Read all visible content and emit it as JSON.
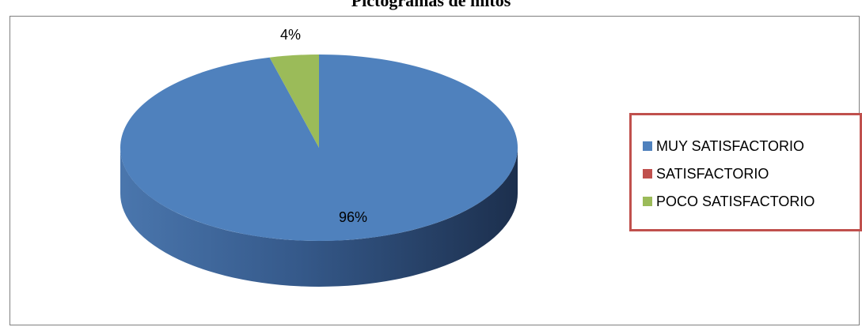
{
  "chart_data": {
    "type": "pie",
    "title": "Pictogramas de mitos",
    "three_d": true,
    "legend_position": "right",
    "slices": [
      {
        "label": "MUY SATISFACTORIO",
        "value": 96,
        "display": "96%",
        "color": "#4f81bd"
      },
      {
        "label": "SATISFACTORIO",
        "value": 0,
        "display": "",
        "color": "#c0504d"
      },
      {
        "label": "POCO SATISFACTORIO",
        "value": 4,
        "display": "4%",
        "color": "#9bbb59"
      }
    ],
    "legend_border_color": "#c0504d"
  }
}
